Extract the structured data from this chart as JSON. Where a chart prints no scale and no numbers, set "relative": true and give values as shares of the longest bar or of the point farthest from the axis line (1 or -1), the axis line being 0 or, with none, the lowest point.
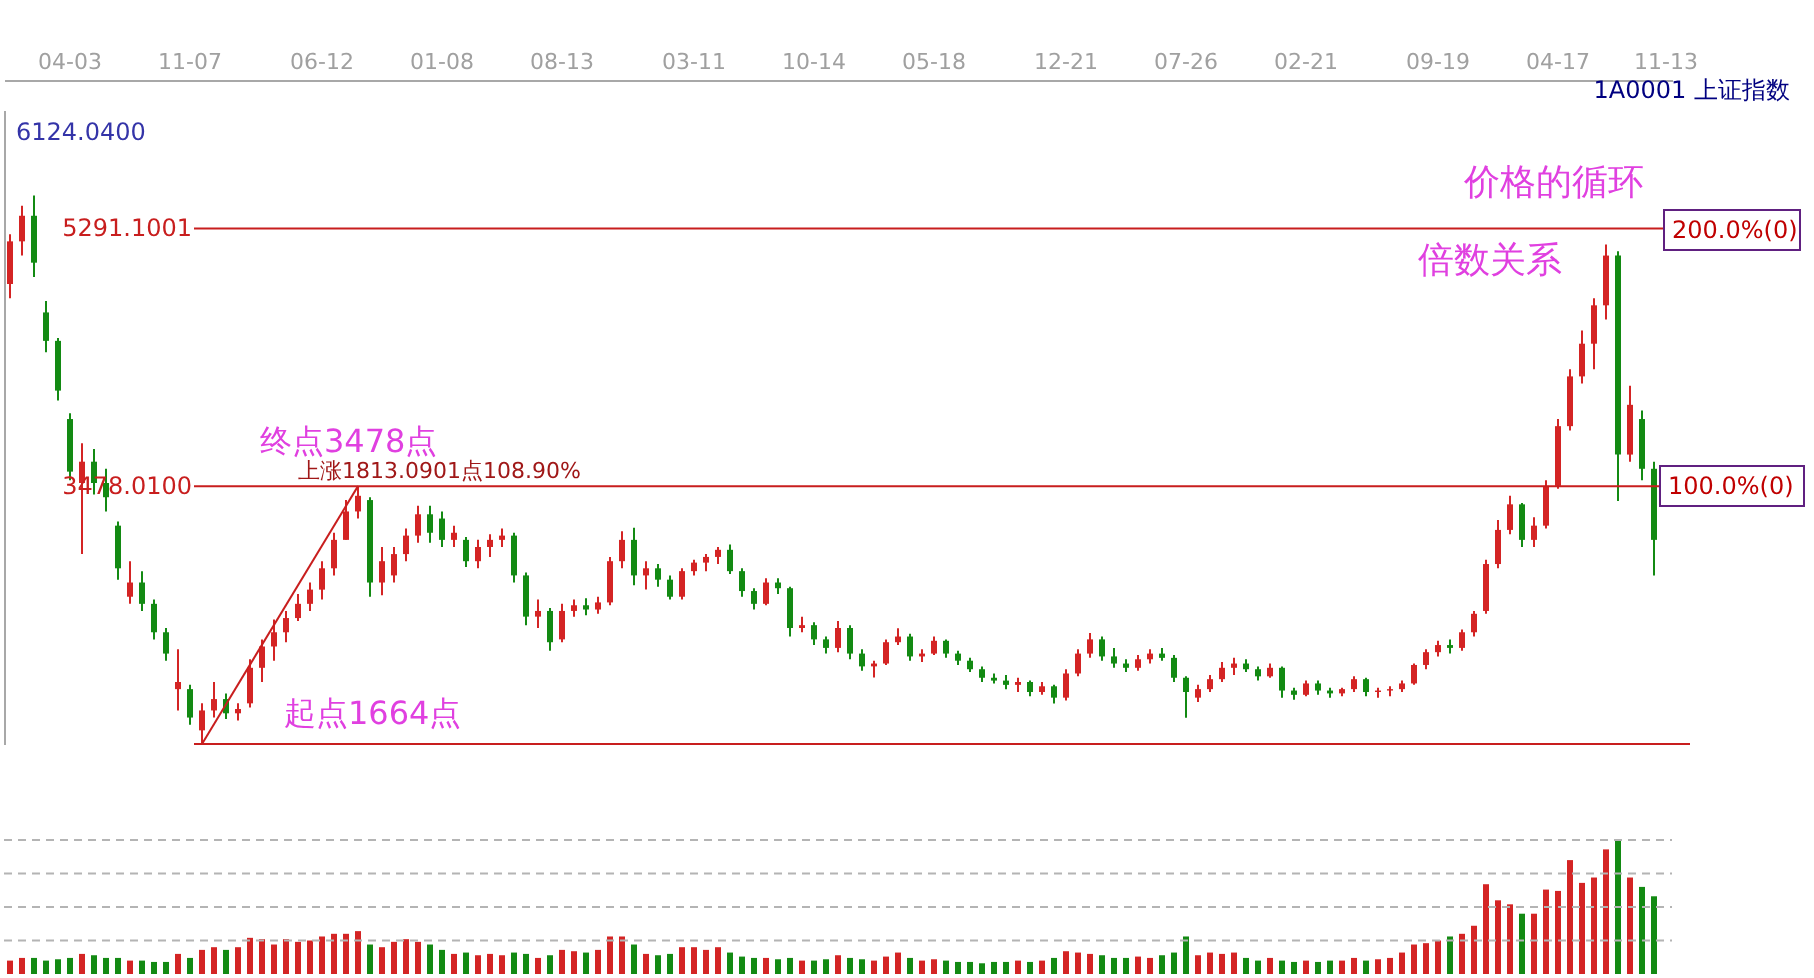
{
  "chart_data": [
    {
      "type": "candlestick",
      "title": "1A0001 上证指数",
      "categories": [
        null,
        null,
        null,
        null,
        null,
        "04-03",
        null,
        null,
        null,
        null,
        null,
        null,
        null,
        null,
        null,
        "11-07",
        null,
        null,
        null,
        null,
        null,
        null,
        null,
        null,
        null,
        null,
        "06-12",
        null,
        null,
        null,
        null,
        null,
        null,
        null,
        null,
        null,
        "01-08",
        null,
        null,
        null,
        null,
        null,
        null,
        null,
        null,
        null,
        "08-13",
        null,
        null,
        null,
        null,
        null,
        null,
        null,
        null,
        null,
        null,
        "03-11",
        null,
        null,
        null,
        null,
        null,
        null,
        null,
        null,
        null,
        "10-14",
        null,
        null,
        null,
        null,
        null,
        null,
        null,
        null,
        null,
        "05-18",
        null,
        null,
        null,
        null,
        null,
        null,
        null,
        null,
        null,
        null,
        "12-21",
        null,
        null,
        null,
        null,
        null,
        null,
        null,
        null,
        null,
        "07-26",
        null,
        null,
        null,
        null,
        null,
        null,
        null,
        null,
        null,
        "02-21",
        null,
        null,
        null,
        null,
        null,
        null,
        null,
        null,
        null,
        null,
        "09-19",
        null,
        null,
        null,
        null,
        null,
        null,
        null,
        null,
        null,
        "04-17",
        null,
        null,
        null,
        null,
        null,
        null,
        null,
        null,
        "11-13"
      ],
      "ohlc": [
        [
          4900,
          5250,
          4800,
          5200
        ],
        [
          5200,
          5450,
          5100,
          5380
        ],
        [
          5380,
          5522,
          4950,
          5050
        ],
        [
          4700,
          4780,
          4420,
          4500
        ],
        [
          4500,
          4520,
          4080,
          4150
        ],
        [
          3950,
          3990,
          3520,
          3580
        ],
        [
          3500,
          3780,
          3000,
          3650
        ],
        [
          3650,
          3740,
          3420,
          3500
        ],
        [
          3500,
          3600,
          3300,
          3400
        ],
        [
          3200,
          3230,
          2820,
          2900
        ],
        [
          2700,
          2950,
          2650,
          2800
        ],
        [
          2800,
          2880,
          2600,
          2650
        ],
        [
          2650,
          2680,
          2400,
          2450
        ],
        [
          2450,
          2480,
          2250,
          2300
        ],
        [
          2050,
          2330,
          1900,
          2100
        ],
        [
          2050,
          2080,
          1800,
          1850
        ],
        [
          1760,
          1950,
          1664,
          1900
        ],
        [
          1900,
          2100,
          1850,
          1980
        ],
        [
          1980,
          2020,
          1840,
          1880
        ],
        [
          1880,
          1950,
          1830,
          1910
        ],
        [
          1950,
          2260,
          1920,
          2200
        ],
        [
          2200,
          2400,
          2100,
          2350
        ],
        [
          2350,
          2540,
          2250,
          2450
        ],
        [
          2450,
          2600,
          2380,
          2550
        ],
        [
          2550,
          2720,
          2530,
          2650
        ],
        [
          2650,
          2800,
          2600,
          2750
        ],
        [
          2750,
          2950,
          2680,
          2900
        ],
        [
          2900,
          3150,
          2850,
          3100
        ],
        [
          3100,
          3380,
          3100,
          3300
        ],
        [
          3300,
          3478.01,
          3250,
          3410
        ],
        [
          3380,
          3400,
          2700,
          2800
        ],
        [
          2800,
          3050,
          2710,
          2950
        ],
        [
          2850,
          3050,
          2800,
          3000
        ],
        [
          3000,
          3180,
          2950,
          3130
        ],
        [
          3130,
          3340,
          3080,
          3280
        ],
        [
          3280,
          3340,
          3080,
          3150
        ],
        [
          3250,
          3300,
          3050,
          3100
        ],
        [
          3100,
          3200,
          3050,
          3150
        ],
        [
          3100,
          3120,
          2910,
          2950
        ],
        [
          2950,
          3100,
          2900,
          3050
        ],
        [
          3050,
          3140,
          2980,
          3100
        ],
        [
          3100,
          3180,
          3050,
          3130
        ],
        [
          3130,
          3150,
          2800,
          2850
        ],
        [
          2850,
          2870,
          2500,
          2560
        ],
        [
          2560,
          2680,
          2480,
          2600
        ],
        [
          2600,
          2620,
          2320,
          2380
        ],
        [
          2400,
          2650,
          2380,
          2600
        ],
        [
          2600,
          2680,
          2560,
          2640
        ],
        [
          2640,
          2690,
          2570,
          2610
        ],
        [
          2610,
          2700,
          2580,
          2660
        ],
        [
          2660,
          2980,
          2640,
          2950
        ],
        [
          2950,
          3160,
          2900,
          3100
        ],
        [
          3100,
          3186,
          2780,
          2850
        ],
        [
          2850,
          2950,
          2750,
          2900
        ],
        [
          2900,
          2930,
          2770,
          2820
        ],
        [
          2820,
          2850,
          2680,
          2700
        ],
        [
          2700,
          2900,
          2680,
          2880
        ],
        [
          2880,
          2960,
          2850,
          2940
        ],
        [
          2940,
          3000,
          2880,
          2980
        ],
        [
          2980,
          3050,
          2930,
          3030
        ],
        [
          3030,
          3067,
          2860,
          2880
        ],
        [
          2880,
          2900,
          2700,
          2740
        ],
        [
          2740,
          2760,
          2610,
          2650
        ],
        [
          2650,
          2830,
          2640,
          2800
        ],
        [
          2800,
          2830,
          2720,
          2760
        ],
        [
          2760,
          2770,
          2420,
          2480
        ],
        [
          2480,
          2560,
          2450,
          2500
        ],
        [
          2500,
          2520,
          2360,
          2400
        ],
        [
          2400,
          2420,
          2300,
          2340
        ],
        [
          2340,
          2530,
          2310,
          2480
        ],
        [
          2480,
          2500,
          2260,
          2300
        ],
        [
          2300,
          2330,
          2180,
          2210
        ],
        [
          2210,
          2250,
          2132,
          2230
        ],
        [
          2230,
          2400,
          2220,
          2380
        ],
        [
          2380,
          2478,
          2360,
          2420
        ],
        [
          2420,
          2440,
          2250,
          2280
        ],
        [
          2280,
          2330,
          2240,
          2300
        ],
        [
          2300,
          2420,
          2290,
          2390
        ],
        [
          2390,
          2400,
          2270,
          2300
        ],
        [
          2300,
          2320,
          2220,
          2250
        ],
        [
          2250,
          2270,
          2170,
          2190
        ],
        [
          2190,
          2210,
          2100,
          2130
        ],
        [
          2130,
          2160,
          2090,
          2110
        ],
        [
          2110,
          2150,
          2050,
          2080
        ],
        [
          2080,
          2130,
          2030,
          2100
        ],
        [
          2100,
          2110,
          2000,
          2030
        ],
        [
          2030,
          2100,
          2010,
          2070
        ],
        [
          2070,
          2080,
          1949,
          1990
        ],
        [
          1990,
          2190,
          1970,
          2160
        ],
        [
          2160,
          2330,
          2140,
          2300
        ],
        [
          2300,
          2444,
          2270,
          2400
        ],
        [
          2400,
          2420,
          2250,
          2280
        ],
        [
          2280,
          2340,
          2200,
          2230
        ],
        [
          2230,
          2260,
          2170,
          2200
        ],
        [
          2200,
          2290,
          2180,
          2260
        ],
        [
          2260,
          2330,
          2230,
          2300
        ],
        [
          2300,
          2340,
          2250,
          2270
        ],
        [
          2270,
          2290,
          2100,
          2130
        ],
        [
          2130,
          2140,
          1849,
          2030
        ],
        [
          1990,
          2080,
          1960,
          2050
        ],
        [
          2050,
          2150,
          2030,
          2120
        ],
        [
          2120,
          2240,
          2100,
          2200
        ],
        [
          2200,
          2270,
          2150,
          2230
        ],
        [
          2230,
          2260,
          2170,
          2190
        ],
        [
          2190,
          2210,
          2110,
          2140
        ],
        [
          2140,
          2230,
          2130,
          2200
        ],
        [
          2200,
          2210,
          1990,
          2040
        ],
        [
          2040,
          2060,
          1975,
          2010
        ],
        [
          2010,
          2110,
          2000,
          2090
        ],
        [
          2090,
          2110,
          2010,
          2040
        ],
        [
          2040,
          2060,
          1990,
          2020
        ],
        [
          2020,
          2060,
          2000,
          2050
        ],
        [
          2050,
          2140,
          2030,
          2120
        ],
        [
          2120,
          2130,
          2000,
          2030
        ],
        [
          2030,
          2060,
          1990,
          2040
        ],
        [
          2040,
          2070,
          2000,
          2050
        ],
        [
          2050,
          2110,
          2030,
          2090
        ],
        [
          2090,
          2230,
          2080,
          2220
        ],
        [
          2220,
          2330,
          2190,
          2310
        ],
        [
          2310,
          2390,
          2280,
          2360
        ],
        [
          2360,
          2400,
          2300,
          2340
        ],
        [
          2340,
          2470,
          2320,
          2450
        ],
        [
          2450,
          2600,
          2420,
          2580
        ],
        [
          2600,
          2960,
          2580,
          2930
        ],
        [
          2930,
          3240,
          2900,
          3170
        ],
        [
          3170,
          3410,
          3140,
          3350
        ],
        [
          3350,
          3360,
          3050,
          3100
        ],
        [
          3100,
          3260,
          3050,
          3200
        ],
        [
          3200,
          3520,
          3180,
          3480
        ],
        [
          3480,
          3950,
          3460,
          3900
        ],
        [
          3900,
          4300,
          3870,
          4250
        ],
        [
          4250,
          4572,
          4200,
          4480
        ],
        [
          4480,
          4800,
          4300,
          4750
        ],
        [
          4750,
          5178,
          4650,
          5100
        ],
        [
          5100,
          5130,
          3373,
          3700
        ],
        [
          3700,
          4185,
          3650,
          4050
        ],
        [
          3950,
          4010,
          3520,
          3600
        ],
        [
          3600,
          3650,
          2850,
          3100
        ],
        null
      ],
      "colors": [
        "#d42424",
        "#d42424",
        "#138a13",
        "#138a13",
        "#138a13",
        "#138a13",
        "#d42424",
        "#138a13",
        "#138a13",
        "#138a13",
        "#d42424",
        "#138a13",
        "#138a13",
        "#138a13",
        "#d42424",
        "#138a13",
        "#d42424",
        "#d42424",
        "#138a13",
        "#d42424",
        "#d42424",
        "#d42424",
        "#d42424",
        "#d42424",
        "#d42424",
        "#d42424",
        "#d42424",
        "#d42424",
        "#d42424",
        "#d42424",
        "#138a13",
        "#d42424",
        "#d42424",
        "#d42424",
        "#d42424",
        "#138a13",
        "#138a13",
        "#d42424",
        "#138a13",
        "#d42424",
        "#d42424",
        "#d42424",
        "#138a13",
        "#138a13",
        "#d42424",
        "#138a13",
        "#d42424",
        "#d42424",
        "#138a13",
        "#d42424",
        "#d42424",
        "#d42424",
        "#138a13",
        "#d42424",
        "#138a13",
        "#138a13",
        "#d42424",
        "#d42424",
        "#d42424",
        "#d42424",
        "#138a13",
        "#138a13",
        "#138a13",
        "#d42424",
        "#138a13",
        "#138a13",
        "#d42424",
        "#138a13",
        "#138a13",
        "#d42424",
        "#138a13",
        "#138a13",
        "#d42424",
        "#d42424",
        "#d42424",
        "#138a13",
        "#d42424",
        "#d42424",
        "#138a13",
        "#138a13",
        "#138a13",
        "#138a13",
        "#138a13",
        "#138a13",
        "#d42424",
        "#138a13",
        "#d42424",
        "#138a13",
        "#d42424",
        "#d42424",
        "#d42424",
        "#138a13",
        "#138a13",
        "#138a13",
        "#d42424",
        "#d42424",
        "#138a13",
        "#138a13",
        "#138a13",
        "#d42424",
        "#d42424",
        "#d42424",
        "#d42424",
        "#138a13",
        "#138a13",
        "#d42424",
        "#138a13",
        "#138a13",
        "#d42424",
        "#138a13",
        "#138a13",
        "#d42424",
        "#d42424",
        "#138a13",
        "#d42424",
        "#d42424",
        "#d42424",
        "#d42424",
        "#d42424",
        "#d42424",
        "#138a13",
        "#d42424",
        "#d42424",
        "#d42424",
        "#d42424",
        "#d42424",
        "#138a13",
        "#d42424",
        "#d42424",
        "#d42424",
        "#d42424",
        "#d42424",
        "#d42424",
        "#d42424",
        "#138a13",
        "#d42424",
        "#138a13",
        "#138a13",
        null
      ],
      "ylim": [
        1664,
        6124.04
      ],
      "tick_labels": "x",
      "series": [
        {
          "type": "line",
          "color": "#c81e1e",
          "values": [
            null,
            null,
            null,
            null,
            null,
            null,
            null,
            null,
            null,
            null,
            null,
            null,
            null,
            null,
            null,
            null,
            1664,
            null,
            null,
            null,
            null,
            null,
            null,
            null,
            null,
            null,
            null,
            null,
            null,
            3478.01,
            null,
            null,
            null,
            null,
            null,
            null,
            null,
            null,
            null,
            null,
            null,
            null,
            null,
            null,
            null,
            null,
            null,
            null,
            null,
            null,
            null,
            null,
            null,
            null,
            null,
            null,
            null,
            null,
            null,
            null,
            null,
            null,
            null,
            null,
            null,
            null,
            null,
            null,
            null,
            null,
            null,
            null,
            null,
            null,
            null,
            null,
            null,
            null,
            null,
            null,
            null,
            null,
            null,
            null,
            null,
            null,
            null,
            null,
            null,
            null,
            null,
            null,
            null,
            null,
            null,
            null,
            null,
            null,
            null,
            null,
            null,
            null,
            null,
            null,
            null,
            null,
            null,
            null,
            null,
            null,
            null,
            null,
            null,
            null,
            null,
            null,
            null,
            null,
            null,
            null,
            null,
            null,
            null,
            null,
            null,
            null,
            null,
            null,
            null,
            null,
            null,
            null,
            null,
            null,
            null,
            null,
            null,
            null,
            null
          ]
        }
      ],
      "ref_lines": [
        {
          "axis": "y",
          "value": 5291.1001,
          "label": "5291.1001",
          "color": "#c81e1e"
        },
        {
          "axis": "y",
          "value": 3478.01,
          "label": "3478.0100",
          "color": "#c81e1e"
        },
        {
          "axis": "y",
          "value": 1664,
          "color": "#c81e1e"
        }
      ],
      "annotations": [
        "6124.0400",
        {
          "text": "终点3478点",
          "y": 3478.01
        },
        "上涨1813.0901点108.90%",
        {
          "text": "起点1664点",
          "y": 1664
        },
        "价格的循环",
        "倍数关系",
        "200.0%(0)",
        "100.0%(0)"
      ]
    },
    {
      "type": "bar",
      "relative": true,
      "categories": [
        null,
        null,
        null,
        null,
        null,
        null,
        null,
        null,
        null,
        null,
        null,
        null,
        null,
        null,
        null,
        null,
        null,
        null,
        null,
        null,
        null,
        null,
        null,
        null,
        null,
        null,
        null,
        null,
        null,
        null,
        null,
        null,
        null,
        null,
        null,
        null,
        null,
        null,
        null,
        null,
        null,
        null,
        null,
        null,
        null,
        null,
        null,
        null,
        null,
        null,
        null,
        null,
        null,
        null,
        null,
        null,
        null,
        null,
        null,
        null,
        null,
        null,
        null,
        null,
        null,
        null,
        null,
        null,
        null,
        null,
        null,
        null,
        null,
        null,
        null,
        null,
        null,
        null,
        null,
        null,
        null,
        null,
        null,
        null,
        null,
        null,
        null,
        null,
        null,
        null,
        null,
        null,
        null,
        null,
        null,
        null,
        null,
        null,
        null,
        null,
        null,
        null,
        null,
        null,
        null,
        null,
        null,
        null,
        null,
        null,
        null,
        null,
        null,
        null,
        null,
        null,
        null,
        null,
        null,
        null,
        null,
        null,
        null,
        null,
        null,
        null,
        null,
        null,
        null,
        null,
        null,
        null,
        null,
        null,
        null,
        null,
        null,
        null,
        null
      ],
      "values": [
        0.1,
        0.12,
        0.12,
        0.1,
        0.11,
        0.12,
        0.15,
        0.14,
        0.12,
        0.12,
        0.1,
        0.1,
        0.09,
        0.09,
        0.15,
        0.12,
        0.18,
        0.2,
        0.18,
        0.2,
        0.27,
        0.26,
        0.22,
        0.26,
        0.24,
        0.25,
        0.28,
        0.3,
        0.3,
        0.32,
        0.22,
        0.2,
        0.24,
        0.26,
        0.24,
        0.22,
        0.18,
        0.15,
        0.16,
        0.14,
        0.15,
        0.14,
        0.16,
        0.15,
        0.12,
        0.14,
        0.18,
        0.17,
        0.16,
        0.18,
        0.28,
        0.28,
        0.22,
        0.15,
        0.14,
        0.15,
        0.2,
        0.2,
        0.18,
        0.2,
        0.16,
        0.13,
        0.12,
        0.12,
        0.11,
        0.12,
        0.1,
        0.1,
        0.11,
        0.14,
        0.12,
        0.11,
        0.1,
        0.13,
        0.16,
        0.12,
        0.1,
        0.11,
        0.1,
        0.09,
        0.09,
        0.08,
        0.09,
        0.09,
        0.1,
        0.09,
        0.1,
        0.12,
        0.17,
        0.16,
        0.15,
        0.14,
        0.12,
        0.12,
        0.13,
        0.12,
        0.14,
        0.16,
        0.28,
        0.14,
        0.16,
        0.15,
        0.16,
        0.12,
        0.1,
        0.12,
        0.1,
        0.09,
        0.1,
        0.09,
        0.1,
        0.1,
        0.12,
        0.1,
        0.11,
        0.12,
        0.16,
        0.22,
        0.23,
        0.25,
        0.28,
        0.3,
        0.36,
        0.67,
        0.55,
        0.52,
        0.45,
        0.45,
        0.63,
        0.62,
        0.85,
        0.68,
        0.72,
        0.93,
        1,
        0.72,
        0.65,
        0.58,
        null
      ],
      "colors": [
        "#d42424",
        "#d42424",
        "#138a13",
        "#138a13",
        "#138a13",
        "#138a13",
        "#d42424",
        "#138a13",
        "#138a13",
        "#138a13",
        "#d42424",
        "#138a13",
        "#138a13",
        "#138a13",
        "#d42424",
        "#138a13",
        "#d42424",
        "#d42424",
        "#138a13",
        "#d42424",
        "#d42424",
        "#d42424",
        "#d42424",
        "#d42424",
        "#d42424",
        "#d42424",
        "#d42424",
        "#d42424",
        "#d42424",
        "#d42424",
        "#138a13",
        "#d42424",
        "#d42424",
        "#d42424",
        "#d42424",
        "#138a13",
        "#138a13",
        "#d42424",
        "#138a13",
        "#d42424",
        "#d42424",
        "#d42424",
        "#138a13",
        "#138a13",
        "#d42424",
        "#138a13",
        "#d42424",
        "#d42424",
        "#138a13",
        "#d42424",
        "#d42424",
        "#d42424",
        "#138a13",
        "#d42424",
        "#138a13",
        "#138a13",
        "#d42424",
        "#d42424",
        "#d42424",
        "#d42424",
        "#138a13",
        "#138a13",
        "#138a13",
        "#d42424",
        "#138a13",
        "#138a13",
        "#d42424",
        "#138a13",
        "#138a13",
        "#d42424",
        "#138a13",
        "#138a13",
        "#d42424",
        "#d42424",
        "#d42424",
        "#138a13",
        "#d42424",
        "#d42424",
        "#138a13",
        "#138a13",
        "#138a13",
        "#138a13",
        "#138a13",
        "#138a13",
        "#d42424",
        "#138a13",
        "#d42424",
        "#138a13",
        "#d42424",
        "#d42424",
        "#d42424",
        "#138a13",
        "#138a13",
        "#138a13",
        "#d42424",
        "#d42424",
        "#138a13",
        "#138a13",
        "#138a13",
        "#d42424",
        "#d42424",
        "#d42424",
        "#d42424",
        "#138a13",
        "#138a13",
        "#d42424",
        "#138a13",
        "#138a13",
        "#d42424",
        "#138a13",
        "#138a13",
        "#d42424",
        "#d42424",
        "#138a13",
        "#d42424",
        "#d42424",
        "#d42424",
        "#d42424",
        "#d42424",
        "#d42424",
        "#138a13",
        "#d42424",
        "#d42424",
        "#d42424",
        "#d42424",
        "#d42424",
        "#138a13",
        "#d42424",
        "#d42424",
        "#d42424",
        "#d42424",
        "#d42424",
        "#d42424",
        "#d42424",
        "#138a13",
        "#d42424",
        "#138a13",
        "#138a13",
        null
      ],
      "ref_lines": [
        {
          "axis": "y",
          "value": 0.25,
          "color": "#b4b4b4",
          "line_style": "dashed"
        },
        {
          "axis": "y",
          "value": 0.5,
          "color": "#b4b4b4",
          "line_style": "dashed"
        },
        {
          "axis": "y",
          "value": 0.75,
          "color": "#b4b4b4",
          "line_style": "dashed"
        },
        {
          "axis": "y",
          "value": 1,
          "color": "#b4b4b4",
          "line_style": "dashed"
        }
      ]
    }
  ]
}
